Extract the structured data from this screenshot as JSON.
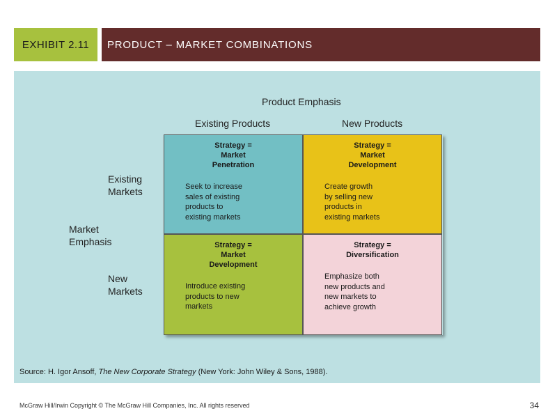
{
  "header": {
    "exhibit": "EXHIBIT 2.11",
    "title": "PRODUCT – MARKET COMBINATIONS"
  },
  "matrix": {
    "product_emphasis": "Product Emphasis",
    "existing_products": "Existing Products",
    "new_products": "New Products",
    "market_emphasis": "Market\nEmphasis",
    "existing_markets": "Existing\nMarkets",
    "new_markets": "New\nMarkets",
    "cells": [
      {
        "title": "Strategy =\nMarket\nPenetration",
        "desc": "Seek to increase\nsales of existing\nproducts to\nexisting markets",
        "color": "#72bfc4"
      },
      {
        "title": "Strategy =\nMarket\nDevelopment",
        "desc": "Create growth\nby selling new\nproducts in\nexisting markets",
        "color": "#e8c218"
      },
      {
        "title": "Strategy =\nMarket\nDevelopment",
        "desc": "Introduce existing\nproducts to new\nmarkets",
        "color": "#a7c13e"
      },
      {
        "title": "Strategy =\nDiversification",
        "desc": "Emphasize both\nnew products and\nnew markets to\nachieve growth",
        "color": "#f3d3d9"
      }
    ]
  },
  "source": {
    "prefix": "Source: H. Igor Ansoff, ",
    "book": "The New Corporate Strategy",
    "suffix": " (New York: John Wiley & Sons, 1988)."
  },
  "footer": {
    "copyright": "McGraw Hill/Irwin   Copyright © The McGraw Hill Companies, Inc.   All rights reserved",
    "page": "34"
  }
}
